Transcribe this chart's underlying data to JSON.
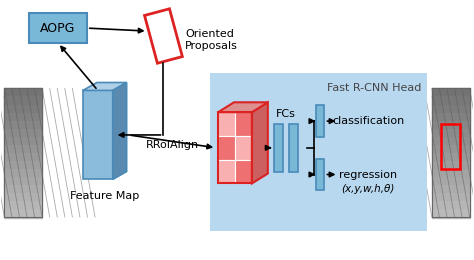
{
  "fig_width": 4.74,
  "fig_height": 2.6,
  "dpi": 100,
  "bg_color": "#ffffff",
  "aopg_box_color": "#7ab8d8",
  "aopg_box_edge": "#4a8ab8",
  "feature_map_front": "#8bbcdc",
  "feature_map_top": "#b0d0e8",
  "feature_map_side": "#5a8ab0",
  "fc_rect_color": "#7ab8d8",
  "fc_rect_edge": "#4a8ab8",
  "fast_rcnn_bg": "#b8d8f0",
  "red_rect_color": "#dd2222",
  "roi_front_light": "#f8b0b0",
  "roi_front_dark": "#ee7070",
  "roi_side_color": "#cc6060",
  "roi_top_color": "#dd9090",
  "title_fast": "Fast R-CNN Head",
  "label_aopg": "AOPG",
  "label_oriented": "Oriented\nProposals",
  "label_feature": "Feature Map",
  "label_rroialign": "RRoIAlign",
  "label_fcs": "FCs",
  "label_classification": "classification",
  "label_regression": "regression",
  "label_params": "(x,y,w,h,θ)"
}
